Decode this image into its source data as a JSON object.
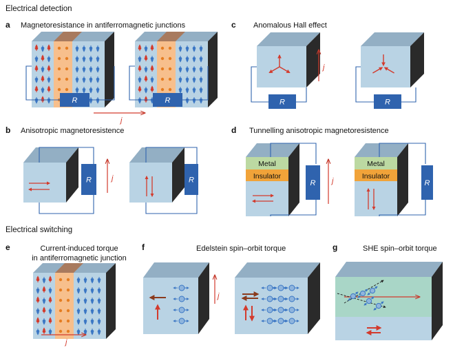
{
  "sections": {
    "detection": "Electrical detection",
    "switching": "Electrical switching"
  },
  "panels": {
    "a": {
      "letter": "a",
      "title": "Magnetoresistance in antiferromagnetic junctions"
    },
    "b": {
      "letter": "b",
      "title": "Anisotropic magnetoresistence"
    },
    "c": {
      "letter": "c",
      "title": "Anomalous Hall effect"
    },
    "d": {
      "letter": "d",
      "title": "Tunnelling anisotropic magnetoresistence"
    },
    "e": {
      "letter": "e",
      "title_line1": "Current-induced torque",
      "title_line2": "in antiferromagnetic junction"
    },
    "f": {
      "letter": "f",
      "title": "Edelstein spin–orbit torque"
    },
    "g": {
      "letter": "g",
      "title": "SHE spin–orbit torque"
    }
  },
  "labels": {
    "resistor": "R",
    "current": "j",
    "metal": "Metal",
    "insulator": "Insulator"
  },
  "colors": {
    "cube_front": "#b9d3e4",
    "cube_top": "#93afc4",
    "cube_side": "#2a2a2a",
    "resistor": "#2f63ae",
    "arrow_red": "#d33a2c",
    "spin_blue": "#3a76c4",
    "copper": "#a87a5e",
    "orange_layer": "#f7bf8c",
    "metal_layer": "#bcd9a2",
    "insulator_layer": "#f1a339",
    "she_layer": "#a9d6c7",
    "dark_brown_arrow": "#8a3a1c"
  }
}
